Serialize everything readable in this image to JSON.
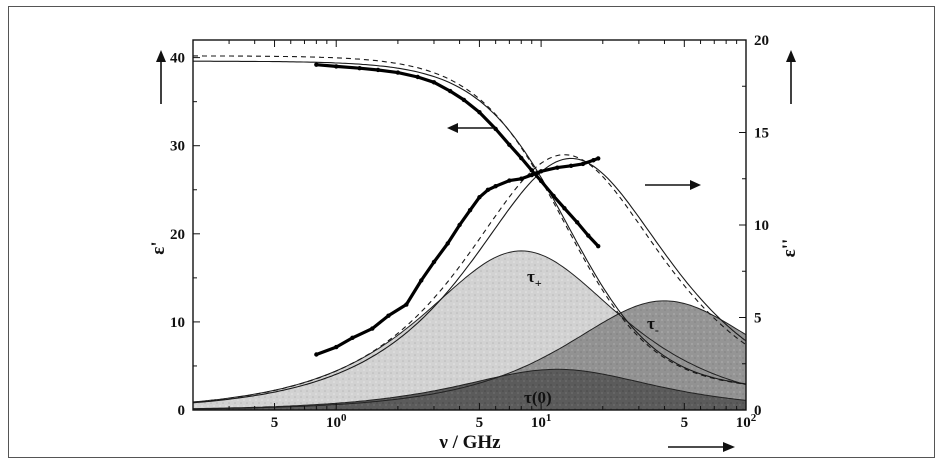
{
  "chart_data": {
    "type": "line",
    "xlabel": "ν / GHz",
    "ylabel_left": "ε'",
    "ylabel_right": "ε''",
    "xscale": "log",
    "xlim": [
      0.2,
      100
    ],
    "ylim_left": [
      0,
      42
    ],
    "ylim_right": [
      0,
      20
    ],
    "x_tick_labels": [
      {
        "value": 0.5,
        "label": "5"
      },
      {
        "value": 1,
        "label": "10",
        "sup": "0"
      },
      {
        "value": 5,
        "label": "5"
      },
      {
        "value": 10,
        "label": "10",
        "sup": "1"
      },
      {
        "value": 50,
        "label": "5"
      },
      {
        "value": 100,
        "label": "10",
        "sup": "2"
      }
    ],
    "y_left_ticks": [
      0,
      10,
      20,
      30,
      40
    ],
    "y_right_ticks": [
      0,
      5,
      10,
      15,
      20
    ],
    "y_right_tick_labels": [
      "0",
      "5",
      "10",
      "15",
      "20"
    ],
    "components": [
      {
        "name": "τ(0)",
        "f_peak": 12,
        "peak": 2.2,
        "fill": "#5e5e5e"
      },
      {
        "name": "τ+",
        "f_peak": 8,
        "peak": 8.6,
        "fill": "#cfcfcf"
      },
      {
        "name": "τ-",
        "f_peak": 40,
        "peak": 5.9,
        "fill": "#8e8e8e"
      }
    ],
    "fits": {
      "eps_prime_solid": {
        "eps_s": 39.6,
        "eps_inf": 2.3,
        "f_peak": 13.5
      },
      "eps_prime_dashed": {
        "eps_s": 40.2,
        "eps_inf": 2.3,
        "f_peak": 13.0
      },
      "eps_dbl_solid": {
        "peak": 13.6,
        "f_peak": 14.0
      },
      "eps_dbl_dashed": {
        "peak": 13.8,
        "f_peak": 13.0
      }
    },
    "data_series": {
      "eps_prime": {
        "x": [
          0.8,
          1.0,
          1.3,
          1.6,
          2.0,
          2.5,
          3.0,
          3.6,
          4.2,
          5.0,
          6.0,
          7.0,
          8.0,
          9.0,
          10.0,
          11.5,
          13.0,
          15.0,
          17.0,
          19.0
        ],
        "y": [
          39.2,
          39.0,
          38.8,
          38.6,
          38.3,
          37.8,
          37.2,
          36.2,
          35.2,
          33.8,
          31.9,
          30.1,
          28.6,
          27.2,
          26.0,
          24.3,
          22.9,
          21.3,
          19.8,
          18.6
        ]
      },
      "eps_dbl": {
        "x": [
          0.8,
          1.0,
          1.2,
          1.5,
          1.8,
          2.2,
          2.6,
          3.0,
          3.5,
          4.0,
          4.5,
          5.0,
          5.5,
          6.0,
          7.0,
          8.0,
          9.0,
          10.0,
          12.0,
          14.0,
          16.0,
          18.0,
          19.0
        ],
        "y": [
          3.0,
          3.4,
          3.9,
          4.4,
          5.1,
          5.7,
          7.0,
          8.0,
          9.0,
          10.0,
          10.8,
          11.5,
          11.9,
          12.1,
          12.4,
          12.5,
          12.7,
          12.9,
          13.1,
          13.2,
          13.3,
          13.5,
          13.6
        ]
      }
    },
    "legend_arrows": [
      {
        "axis": "left",
        "direction": "left"
      },
      {
        "axis": "right",
        "direction": "right"
      }
    ],
    "grid": false,
    "colors": {
      "line": "#1a1a1a",
      "data": "#000000"
    }
  }
}
